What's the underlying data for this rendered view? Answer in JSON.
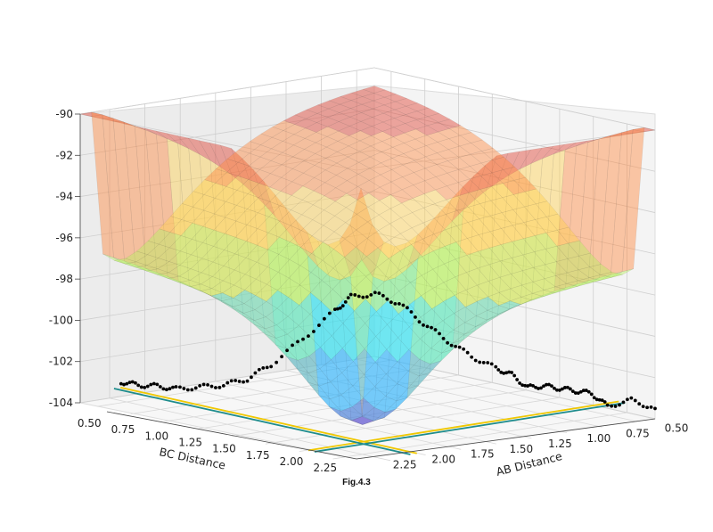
{
  "caption": "Fig.4.3",
  "chart_data": {
    "type": "surface",
    "title": "",
    "xlabel": "AB Distance",
    "ylabel": "BC Distance",
    "zlabel": "",
    "xticks": [
      "2.25",
      "2.00",
      "1.75",
      "1.50",
      "1.25",
      "1.00",
      "0.75",
      "0.50"
    ],
    "yticks": [
      "0.50",
      "0.75",
      "1.00",
      "1.25",
      "1.50",
      "1.75",
      "2.00",
      "2.25"
    ],
    "zticks": [
      "-90",
      "-92",
      "-94",
      "-96",
      "-98",
      "-100",
      "-102",
      "-104"
    ],
    "zlim": [
      -104,
      -90
    ],
    "xlim": [
      0.5,
      2.3
    ],
    "ylim": [
      0.5,
      2.3
    ],
    "colormap": [
      "#5a4fcf",
      "#3fa0ff",
      "#36e0f0",
      "#b8f060",
      "#ffd050",
      "#ff8a40",
      "#e04030"
    ],
    "surface_alpha": 0.45,
    "trajectory": {
      "color": "#000000",
      "marker": "dot",
      "description": "reactive trajectory over saddle",
      "ab_distance": [
        0.5,
        0.6,
        0.7,
        0.75,
        0.8,
        0.85,
        0.9,
        0.95,
        1.0,
        1.05,
        1.1,
        1.15,
        1.2,
        1.25,
        1.3,
        1.35,
        1.4,
        1.5,
        1.6,
        1.7,
        1.8,
        1.9,
        2.0,
        2.1,
        2.2,
        2.3
      ],
      "bc_distance": [
        2.3,
        2.25,
        2.2,
        2.15,
        2.1,
        2.05,
        2.0,
        1.95,
        1.9,
        1.85,
        1.75,
        1.65,
        1.55,
        1.45,
        1.35,
        1.25,
        1.2,
        1.1,
        1.0,
        0.95,
        0.9,
        0.85,
        0.8,
        0.78,
        0.76,
        0.75
      ],
      "energy": [
        -103.5,
        -103.2,
        -103.6,
        -103.0,
        -102.9,
        -102.8,
        -102.7,
        -102.8,
        -102.2,
        -101.9,
        -101.3,
        -100.5,
        -99.6,
        -98.6,
        -98.1,
        -98.2,
        -98.9,
        -100.3,
        -101.6,
        -102.4,
        -102.8,
        -103.0,
        -103.2,
        -103.2,
        -103.3,
        -103.3
      ]
    },
    "contours": [
      {
        "color": "#f0c800",
        "level": "outer"
      },
      {
        "color": "#1e8c8c",
        "level": "inner"
      }
    ],
    "grid": true,
    "legend": "none"
  }
}
